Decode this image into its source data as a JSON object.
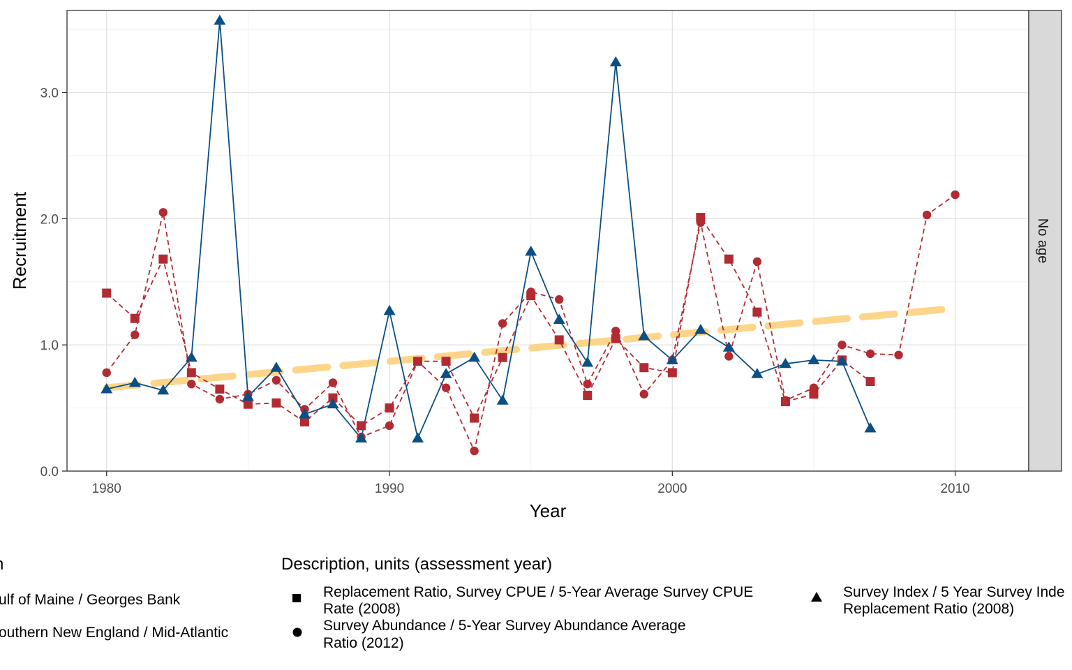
{
  "chart_data": {
    "type": "line",
    "xlabel": "Year",
    "ylabel": "Recruitment",
    "xlim": [
      1978.6,
      2012.6
    ],
    "ylim": [
      0,
      3.65
    ],
    "x_ticks": [
      "1980",
      "1990",
      "2000",
      "2010"
    ],
    "y_ticks": [
      "0.0",
      "1.0",
      "2.0",
      "3.0"
    ],
    "grid": true,
    "facet_label": "No age",
    "legend_position": "bottom",
    "legend_region_title": "n",
    "legend_region_items": [
      "ulf of Maine / Georges Bank",
      "outhern New England / Mid-Atlantic"
    ],
    "legend_desc_title": "Description, units (assessment year)",
    "legend_desc_items": [
      {
        "shape": "square",
        "line1": "Replacement Ratio, Survey CPUE / 5-Year Average Survey CPUE",
        "line2": "Rate (2008)"
      },
      {
        "shape": "circle",
        "line1": "Survey Abundance / 5-Year Survey Abundance Average",
        "line2": "Ratio (2012)"
      },
      {
        "shape": "triangle",
        "line1": "Survey Index / 5 Year Survey Inde",
        "line2": "Replacement Ratio (2008)"
      }
    ],
    "series": [
      {
        "shape": "square",
        "region": "red",
        "dashed": true,
        "color": "#B22B33",
        "x": [
          1980,
          1981,
          1982,
          1983,
          1984,
          1985,
          1986,
          1987,
          1988,
          1989,
          1990,
          1991,
          1992,
          1993,
          1994,
          1995,
          1996,
          1997,
          1998,
          1999,
          2000,
          2001,
          2002,
          2003,
          2004,
          2005,
          2006,
          2007
        ],
        "y": [
          1.41,
          1.21,
          1.68,
          0.78,
          0.65,
          0.53,
          0.54,
          0.39,
          0.58,
          0.36,
          0.5,
          0.87,
          0.87,
          0.42,
          0.9,
          1.39,
          1.04,
          0.6,
          1.05,
          0.82,
          0.78,
          2.01,
          1.68,
          1.26,
          0.55,
          0.61,
          0.88,
          0.71
        ]
      },
      {
        "shape": "circle",
        "region": "red",
        "dashed": true,
        "color": "#B22B33",
        "x": [
          1980,
          1981,
          1982,
          1983,
          1984,
          1985,
          1986,
          1987,
          1988,
          1989,
          1990,
          1991,
          1992,
          1993,
          1994,
          1995,
          1996,
          1997,
          1998,
          1999,
          2000,
          2001,
          2002,
          2003,
          2004,
          2005,
          2006,
          2007,
          2008,
          2009,
          2010
        ],
        "y": [
          0.78,
          1.08,
          2.05,
          0.69,
          0.57,
          0.61,
          0.72,
          0.49,
          0.7,
          0.27,
          0.36,
          0.87,
          0.66,
          0.16,
          1.17,
          1.42,
          1.36,
          0.69,
          1.11,
          0.61,
          0.88,
          1.97,
          0.91,
          1.66,
          0.56,
          0.66,
          1.0,
          0.93,
          0.92,
          2.03,
          2.19
        ]
      },
      {
        "shape": "triangle",
        "region": "blue",
        "dashed": false,
        "color": "#0B4F84",
        "x": [
          1980,
          1981,
          1982,
          1983,
          1984,
          1985,
          1986,
          1987,
          1988,
          1989,
          1990,
          1991,
          1992,
          1993,
          1994,
          1995,
          1996,
          1997,
          1998,
          1999,
          2000,
          2001,
          2002,
          2003,
          2004,
          2005,
          2006,
          2007
        ],
        "y": [
          0.65,
          0.7,
          0.64,
          0.9,
          3.57,
          0.59,
          0.82,
          0.45,
          0.53,
          0.26,
          1.27,
          0.26,
          0.77,
          0.9,
          0.56,
          1.74,
          1.2,
          0.86,
          3.24,
          1.07,
          0.88,
          1.12,
          0.98,
          0.77,
          0.85,
          0.88,
          0.87,
          0.34
        ]
      }
    ],
    "trend": {
      "x": [
        1980,
        2010
      ],
      "y": [
        0.66,
        1.29
      ],
      "color": "#FDD17E"
    }
  }
}
